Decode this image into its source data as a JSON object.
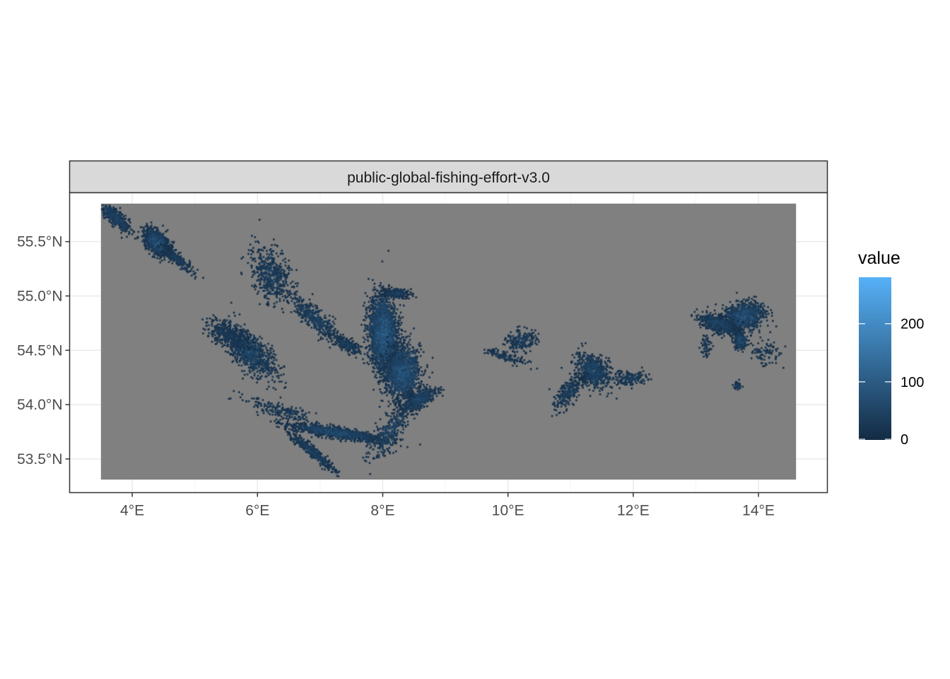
{
  "chart_data": {
    "type": "heatmap",
    "facet_label": "public-global-fishing-effort-v3.0",
    "x_axis": {
      "range": [
        3.0,
        15.1
      ],
      "ticks": [
        4,
        6,
        8,
        10,
        12,
        14
      ],
      "tick_labels": [
        "4°E",
        "6°E",
        "8°E",
        "10°E",
        "12°E",
        "14°E"
      ]
    },
    "y_axis": {
      "range": [
        53.19,
        55.95
      ],
      "ticks": [
        53.5,
        54.0,
        54.5,
        55.0,
        55.5
      ],
      "tick_labels": [
        "53.5°N",
        "54.0°N",
        "54.5°N",
        "55.0°N",
        "55.5°N"
      ]
    },
    "raster_extent": {
      "lon": [
        3.5,
        14.6
      ],
      "lat": [
        53.31,
        55.85
      ]
    },
    "na_color": "#808080",
    "legend": {
      "title": "value",
      "limits": [
        0,
        280
      ],
      "breaks": [
        0,
        100,
        200
      ],
      "break_labels": [
        "0",
        "100",
        "200"
      ],
      "color_low": "#132B43",
      "color_high": "#56B1F7",
      "placement": "right"
    },
    "clusters": [
      {
        "lon": 3.7,
        "lat": 55.74,
        "rx": 0.28,
        "ry": 0.07,
        "angle": -25,
        "n": 420,
        "vmax": 70
      },
      {
        "lon": 4.38,
        "lat": 55.5,
        "rx": 0.2,
        "ry": 0.1,
        "angle": -20,
        "n": 1100,
        "vmax": 110
      },
      {
        "lon": 4.7,
        "lat": 55.35,
        "rx": 0.3,
        "ry": 0.05,
        "angle": -25,
        "n": 220,
        "vmax": 50
      },
      {
        "lon": 6.2,
        "lat": 55.2,
        "rx": 0.35,
        "ry": 0.22,
        "angle": -30,
        "n": 520,
        "vmax": 50
      },
      {
        "lon": 5.85,
        "lat": 54.5,
        "rx": 0.45,
        "ry": 0.16,
        "angle": -25,
        "n": 900,
        "vmax": 70
      },
      {
        "lon": 5.5,
        "lat": 54.65,
        "rx": 0.35,
        "ry": 0.1,
        "angle": -15,
        "n": 300,
        "vmax": 40
      },
      {
        "lon": 6.9,
        "lat": 54.8,
        "rx": 0.45,
        "ry": 0.1,
        "angle": -25,
        "n": 420,
        "vmax": 60
      },
      {
        "lon": 7.4,
        "lat": 54.56,
        "rx": 0.25,
        "ry": 0.06,
        "angle": -15,
        "n": 200,
        "vmax": 50
      },
      {
        "lon": 8.0,
        "lat": 54.65,
        "rx": 0.22,
        "ry": 0.35,
        "angle": 10,
        "n": 2400,
        "vmax": 130
      },
      {
        "lon": 8.3,
        "lat": 54.3,
        "rx": 0.28,
        "ry": 0.24,
        "angle": 15,
        "n": 1300,
        "vmax": 110
      },
      {
        "lon": 8.2,
        "lat": 55.03,
        "rx": 0.2,
        "ry": 0.04,
        "angle": 0,
        "n": 260,
        "vmax": 60
      },
      {
        "lon": 8.55,
        "lat": 54.05,
        "rx": 0.3,
        "ry": 0.08,
        "angle": 15,
        "n": 500,
        "vmax": 80
      },
      {
        "lon": 7.25,
        "lat": 53.75,
        "rx": 0.75,
        "ry": 0.05,
        "angle": -5,
        "n": 1000,
        "vmax": 90
      },
      {
        "lon": 6.85,
        "lat": 53.58,
        "rx": 0.4,
        "ry": 0.05,
        "angle": -25,
        "n": 420,
        "vmax": 60
      },
      {
        "lon": 8.1,
        "lat": 53.76,
        "rx": 0.4,
        "ry": 0.14,
        "angle": 35,
        "n": 320,
        "vmax": 60
      },
      {
        "lon": 6.35,
        "lat": 53.95,
        "rx": 0.6,
        "ry": 0.07,
        "angle": -10,
        "n": 200,
        "vmax": 40
      },
      {
        "lon": 10.2,
        "lat": 54.6,
        "rx": 0.25,
        "ry": 0.1,
        "angle": 0,
        "n": 200,
        "vmax": 50
      },
      {
        "lon": 9.95,
        "lat": 54.45,
        "rx": 0.35,
        "ry": 0.05,
        "angle": -10,
        "n": 120,
        "vmax": 40
      },
      {
        "lon": 11.35,
        "lat": 54.32,
        "rx": 0.3,
        "ry": 0.14,
        "angle": -15,
        "n": 600,
        "vmax": 70
      },
      {
        "lon": 10.95,
        "lat": 54.12,
        "rx": 0.25,
        "ry": 0.1,
        "angle": 30,
        "n": 250,
        "vmax": 50
      },
      {
        "lon": 11.95,
        "lat": 54.25,
        "rx": 0.25,
        "ry": 0.06,
        "angle": 0,
        "n": 150,
        "vmax": 50
      },
      {
        "lon": 13.75,
        "lat": 54.82,
        "rx": 0.32,
        "ry": 0.12,
        "angle": 5,
        "n": 900,
        "vmax": 110
      },
      {
        "lon": 13.35,
        "lat": 54.75,
        "rx": 0.3,
        "ry": 0.08,
        "angle": -10,
        "n": 500,
        "vmax": 70
      },
      {
        "lon": 13.7,
        "lat": 54.6,
        "rx": 0.1,
        "ry": 0.08,
        "angle": 0,
        "n": 260,
        "vmax": 90
      },
      {
        "lon": 13.15,
        "lat": 54.55,
        "rx": 0.08,
        "ry": 0.1,
        "angle": 0,
        "n": 60,
        "vmax": 40
      },
      {
        "lon": 13.65,
        "lat": 54.18,
        "rx": 0.06,
        "ry": 0.03,
        "angle": 0,
        "n": 60,
        "vmax": 60
      },
      {
        "lon": 14.1,
        "lat": 54.5,
        "rx": 0.25,
        "ry": 0.12,
        "angle": 0,
        "n": 90,
        "vmax": 30
      }
    ]
  }
}
